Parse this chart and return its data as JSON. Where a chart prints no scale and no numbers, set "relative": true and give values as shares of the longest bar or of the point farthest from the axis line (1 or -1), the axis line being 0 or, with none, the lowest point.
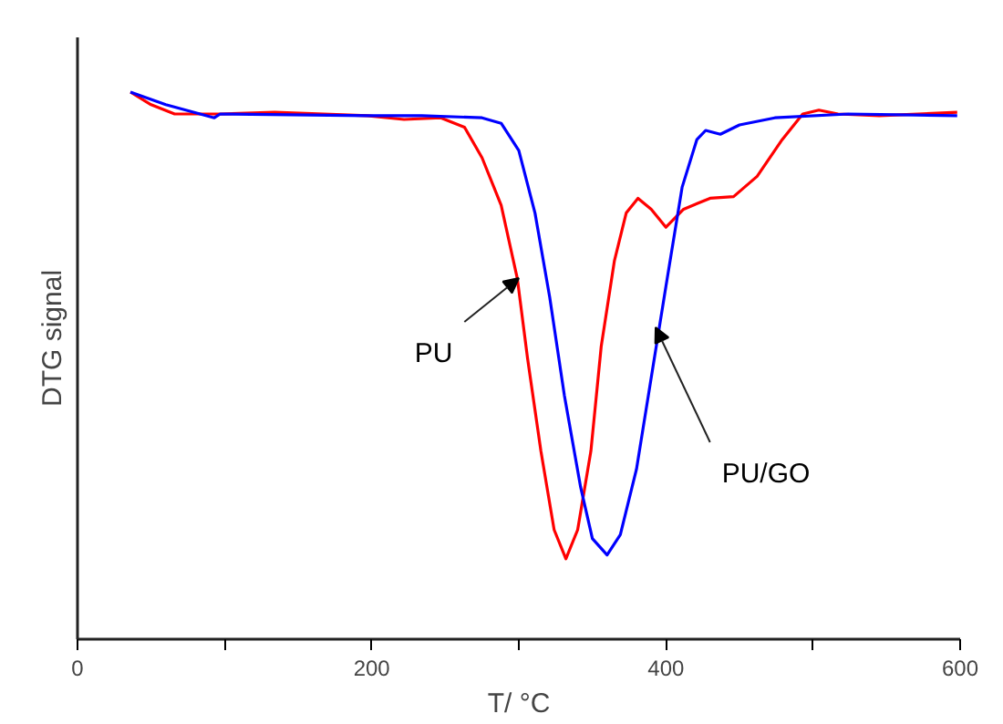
{
  "chart_data": {
    "type": "line",
    "relative": true,
    "xlabel": "T/ °C",
    "ylabel": "DTG signal",
    "xlim": [
      0,
      600
    ],
    "xticks": [
      0,
      {
        "value": 100,
        "label": null
      },
      200,
      {
        "value": 300,
        "label": null
      },
      400,
      {
        "value": 500,
        "label": null
      },
      600
    ],
    "grid": false,
    "marker": "none",
    "line_style": "solid",
    "series": [
      {
        "color": "#ff0000",
        "x": [
          36,
          50,
          66,
          97,
          134,
          197,
          222,
          247,
          263,
          275,
          288,
          299,
          306,
          315,
          324,
          332,
          340,
          349,
          356,
          365,
          373,
          381,
          390,
          400,
          412,
          430,
          446,
          462,
          479,
          493,
          504,
          517,
          545,
          598
        ],
        "values": [
          1.0,
          0.977,
          0.96,
          0.96,
          0.963,
          0.957,
          0.95,
          0.953,
          0.936,
          0.88,
          0.793,
          0.659,
          0.512,
          0.344,
          0.2,
          0.147,
          0.2,
          0.344,
          0.535,
          0.692,
          0.779,
          0.806,
          0.786,
          0.753,
          0.786,
          0.806,
          0.809,
          0.846,
          0.913,
          0.96,
          0.967,
          0.96,
          0.957,
          0.963
        ]
      },
      {
        "color": "#0000ff",
        "x": [
          36,
          60,
          93,
          97,
          197,
          234,
          275,
          288,
          300,
          311,
          321,
          331,
          342,
          350,
          360,
          369,
          380,
          390,
          400,
          411,
          421,
          427,
          437,
          450,
          474,
          524,
          598
        ],
        "values": [
          1.0,
          0.977,
          0.953,
          0.96,
          0.957,
          0.957,
          0.953,
          0.943,
          0.893,
          0.779,
          0.625,
          0.445,
          0.278,
          0.184,
          0.154,
          0.191,
          0.311,
          0.478,
          0.645,
          0.826,
          0.913,
          0.93,
          0.923,
          0.94,
          0.953,
          0.96,
          0.957
        ]
      }
    ],
    "annotations": [
      {
        "text": "PU",
        "x": 300,
        "y": 0.66
      },
      {
        "text": "PU/GO",
        "x": 393,
        "y": 0.57
      }
    ]
  }
}
